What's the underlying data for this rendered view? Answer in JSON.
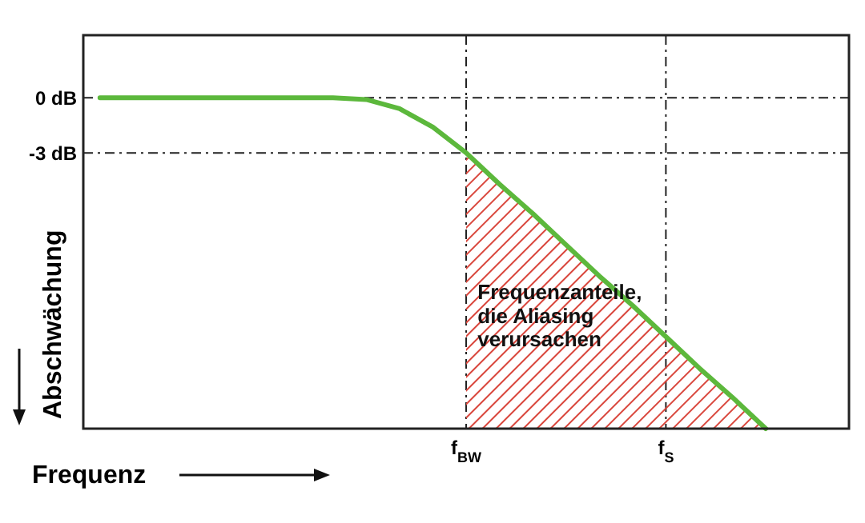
{
  "chart_data": {
    "type": "line",
    "xlabel": "Frequenz",
    "ylabel": "Abschwächung",
    "categories": [
      null,
      null,
      null,
      null,
      null,
      null,
      null,
      null,
      null,
      null,
      null,
      "f$_{BW}$",
      null,
      null,
      null,
      null,
      null,
      "f$_{S}$",
      null,
      null,
      null,
      null,
      null
    ],
    "ylim": [
      -18,
      3.4
    ],
    "yticks": [
      {
        "value": 0,
        "label": "0 dB"
      },
      {
        "value": -3,
        "label": "-3 dB"
      }
    ],
    "grid": true,
    "series": [
      {
        "color": "#5cb83c",
        "values": [
          0,
          0,
          0,
          0,
          0,
          0,
          0,
          0,
          -0.1,
          -0.6,
          -1.6,
          -3,
          -4.7,
          -6.3,
          -8,
          -9.7,
          -11.3,
          -13,
          -14.7,
          -16.3,
          -18,
          null,
          null
        ]
      }
    ],
    "annotations": [
      "Frequenzanteile,\ndie Aliasing\nverursachen"
    ]
  }
}
